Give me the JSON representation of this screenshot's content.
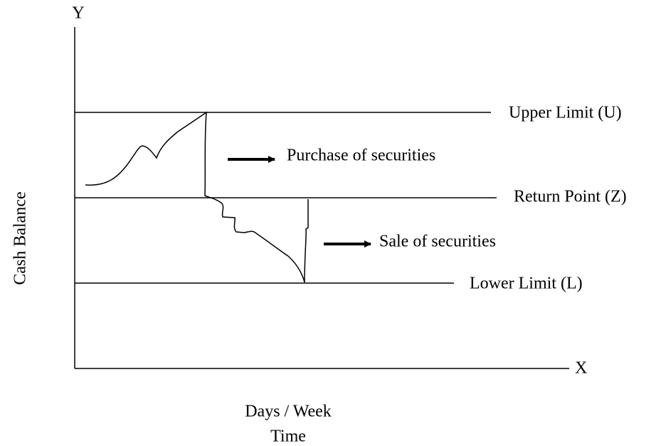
{
  "axes": {
    "y_label": "Y",
    "x_label": "X",
    "y_title": "Cash Balance",
    "x_title": [
      "Days / Week",
      "Time"
    ]
  },
  "levels": {
    "upper": "Upper Limit (U)",
    "return": "Return Point (Z)",
    "lower": "Lower Limit (L)"
  },
  "actions": {
    "purchase": "Purchase of securities",
    "sale": "Sale of securities"
  }
}
